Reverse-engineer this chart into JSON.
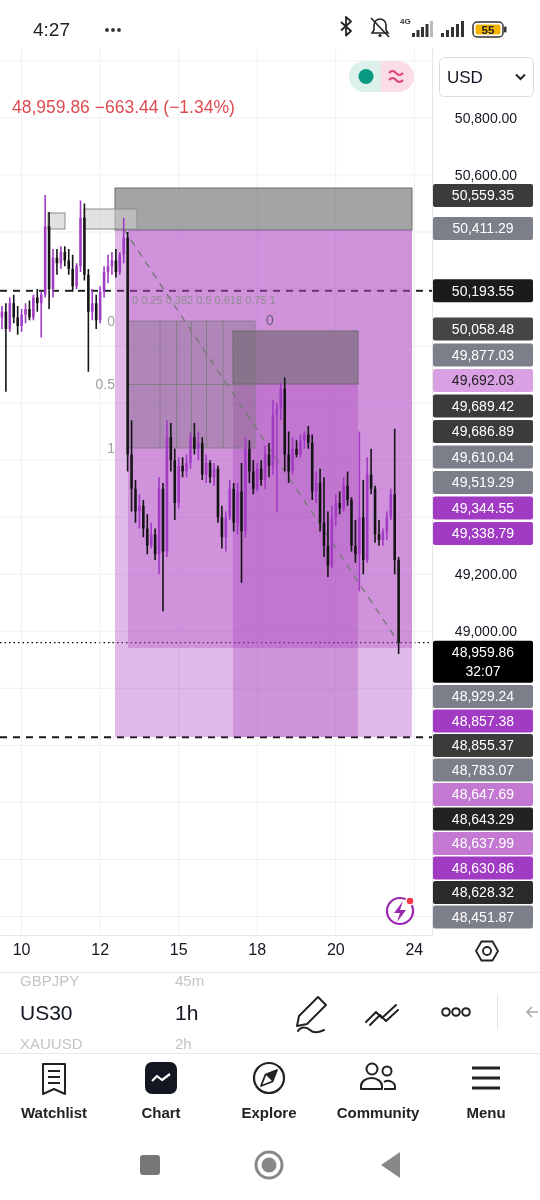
{
  "chart_data": {
    "type": "candlestick",
    "subtitle": "48,959.86 −663.44 (−1.34%)",
    "categories": [
      null,
      null,
      null,
      null,
      null,
      "10",
      null,
      null,
      null,
      null,
      null,
      null,
      null,
      null,
      null,
      null,
      null,
      null,
      null,
      null,
      null,
      null,
      null,
      null,
      null,
      "12",
      null,
      null,
      null,
      null,
      null,
      null,
      null,
      null,
      null,
      null,
      null,
      null,
      null,
      null,
      null,
      null,
      null,
      null,
      null,
      "15",
      null,
      null,
      null,
      null,
      null,
      null,
      null,
      null,
      null,
      null,
      null,
      null,
      null,
      null,
      null,
      null,
      null,
      null,
      null,
      "18",
      null,
      null,
      null,
      null,
      null,
      null,
      null,
      null,
      null,
      null,
      null,
      null,
      null,
      null,
      null,
      null,
      null,
      null,
      null,
      "20",
      null,
      null,
      null,
      null,
      null,
      null,
      null,
      null,
      null,
      null,
      null,
      null,
      null,
      null,
      null,
      null,
      null,
      null,
      null,
      "24",
      null,
      null,
      null,
      null
    ],
    "ohlc": [
      [
        50100,
        50140,
        50060,
        50120
      ],
      [
        50120,
        50150,
        49840,
        50060
      ],
      [
        50060,
        50170,
        50050,
        50150
      ],
      [
        50150,
        50180,
        50080,
        50100
      ],
      [
        50100,
        50140,
        50040,
        50070
      ],
      [
        50070,
        50130,
        50050,
        50110
      ],
      [
        50110,
        50150,
        50080,
        50130
      ],
      [
        50130,
        50160,
        50090,
        50100
      ],
      [
        50100,
        50180,
        50090,
        50170
      ],
      [
        50170,
        50200,
        50120,
        50150
      ],
      [
        50150,
        50190,
        50030,
        50180
      ],
      [
        50180,
        50530,
        50170,
        50420
      ],
      [
        50420,
        50470,
        50130,
        50200
      ],
      [
        50200,
        50340,
        50170,
        50310
      ],
      [
        50310,
        50340,
        50250,
        50290
      ],
      [
        50290,
        50350,
        50270,
        50330
      ],
      [
        50330,
        50350,
        50280,
        50300
      ],
      [
        50300,
        50340,
        50250,
        50270
      ],
      [
        50270,
        50320,
        50190,
        50210
      ],
      [
        50210,
        50290,
        50200,
        50280
      ],
      [
        50280,
        50510,
        50260,
        50450
      ],
      [
        50450,
        50500,
        50230,
        50250
      ],
      [
        50250,
        50270,
        49910,
        50120
      ],
      [
        50120,
        50200,
        50090,
        50150
      ],
      [
        50150,
        50180,
        50060,
        50090
      ],
      [
        50090,
        50210,
        50080,
        50190
      ],
      [
        50190,
        50280,
        50170,
        50260
      ],
      [
        50260,
        50320,
        50220,
        50280
      ],
      [
        50280,
        50330,
        50250,
        50300
      ],
      [
        50300,
        50340,
        50240,
        50260
      ],
      [
        50260,
        50330,
        50250,
        50320
      ],
      [
        50320,
        50450,
        50290,
        50380
      ],
      [
        50380,
        50400,
        49560,
        49620
      ],
      [
        49620,
        49740,
        49420,
        49500
      ],
      [
        49500,
        49530,
        49380,
        49420
      ],
      [
        49420,
        49480,
        49360,
        49440
      ],
      [
        49440,
        49460,
        49330,
        49360
      ],
      [
        49360,
        49410,
        49270,
        49300
      ],
      [
        49300,
        49380,
        49290,
        49340
      ],
      [
        49340,
        49360,
        49250,
        49270
      ],
      [
        49270,
        49540,
        49200,
        49500
      ],
      [
        49500,
        49520,
        49070,
        49280
      ],
      [
        49280,
        49740,
        49260,
        49680
      ],
      [
        49680,
        49730,
        49560,
        49600
      ],
      [
        49600,
        49640,
        49390,
        49450
      ],
      [
        49450,
        49610,
        49430,
        49580
      ],
      [
        49580,
        49610,
        49540,
        49560
      ],
      [
        49560,
        49620,
        49540,
        49590
      ],
      [
        49590,
        49700,
        49570,
        49680
      ],
      [
        49680,
        49730,
        49620,
        49640
      ],
      [
        49640,
        49700,
        49600,
        49660
      ],
      [
        49660,
        49680,
        49530,
        49550
      ],
      [
        49550,
        49620,
        49520,
        49590
      ],
      [
        49590,
        49600,
        49520,
        49540
      ],
      [
        49540,
        49590,
        49510,
        49570
      ],
      [
        49570,
        49580,
        49380,
        49400
      ],
      [
        49400,
        49440,
        49290,
        49330
      ],
      [
        49330,
        49420,
        49280,
        49400
      ],
      [
        49400,
        49530,
        49390,
        49500
      ],
      [
        49500,
        49520,
        49350,
        49380
      ],
      [
        49380,
        49520,
        49340,
        49490
      ],
      [
        49490,
        49590,
        49170,
        49350
      ],
      [
        49350,
        49680,
        49330,
        49640
      ],
      [
        49640,
        49670,
        49520,
        49560
      ],
      [
        49560,
        49600,
        49480,
        49500
      ],
      [
        49500,
        49590,
        49490,
        49570
      ],
      [
        49570,
        49600,
        49510,
        49530
      ],
      [
        49530,
        49650,
        49500,
        49620
      ],
      [
        49620,
        49660,
        49540,
        49580
      ],
      [
        49580,
        49810,
        49550,
        49760
      ],
      [
        49760,
        49800,
        49420,
        49780
      ],
      [
        49780,
        49870,
        49740,
        49850
      ],
      [
        49850,
        49890,
        49560,
        49620
      ],
      [
        49620,
        49700,
        49520,
        49560
      ],
      [
        49560,
        49680,
        49550,
        49640
      ],
      [
        49640,
        49670,
        49610,
        49620
      ],
      [
        49620,
        49690,
        49610,
        49670
      ],
      [
        49670,
        49700,
        49640,
        49690
      ],
      [
        49690,
        49720,
        49640,
        49660
      ],
      [
        49660,
        49690,
        49460,
        49490
      ],
      [
        49490,
        49560,
        49450,
        49520
      ],
      [
        49520,
        49570,
        49350,
        49380
      ],
      [
        49380,
        49540,
        49260,
        49300
      ],
      [
        49300,
        49420,
        49190,
        49230
      ],
      [
        49230,
        49440,
        49220,
        49400
      ],
      [
        49400,
        49480,
        49370,
        49450
      ],
      [
        49450,
        49490,
        49410,
        49430
      ],
      [
        49430,
        49540,
        49420,
        49510
      ],
      [
        49510,
        49560,
        49440,
        49460
      ],
      [
        49460,
        49470,
        49280,
        49300
      ],
      [
        49300,
        49390,
        49240,
        49270
      ],
      [
        49270,
        49700,
        49140,
        49400
      ],
      [
        49400,
        49530,
        49200,
        49250
      ],
      [
        49250,
        49610,
        49240,
        49550
      ],
      [
        49550,
        49640,
        49480,
        49500
      ],
      [
        49500,
        49510,
        49310,
        49340
      ],
      [
        49340,
        49390,
        49300,
        49320
      ],
      [
        49320,
        49360,
        49300,
        49350
      ],
      [
        49350,
        49420,
        49320,
        49400
      ],
      [
        49400,
        49500,
        49390,
        49480
      ],
      [
        49480,
        49710,
        49200,
        49250
      ],
      [
        49250,
        49260,
        48920,
        48959.86
      ],
      null,
      null,
      null,
      null,
      null,
      null,
      null,
      null
    ],
    "series": [
      {
        "type": "line",
        "color": "#7a7a7a",
        "line_style": "dashed",
        "values": [
          null,
          null,
          null,
          null,
          null,
          null,
          null,
          null,
          null,
          null,
          null,
          null,
          null,
          null,
          null,
          null,
          null,
          null,
          null,
          null,
          null,
          null,
          null,
          null,
          null,
          null,
          null,
          null,
          null,
          null,
          null,
          50410,
          null,
          null,
          null,
          null,
          null,
          null,
          null,
          null,
          null,
          null,
          null,
          null,
          null,
          null,
          null,
          null,
          null,
          null,
          null,
          null,
          null,
          null,
          null,
          null,
          null,
          null,
          null,
          null,
          null,
          null,
          null,
          null,
          null,
          null,
          null,
          null,
          null,
          null,
          null,
          null,
          null,
          null,
          null,
          null,
          null,
          null,
          null,
          null,
          null,
          null,
          null,
          null,
          null,
          null,
          null,
          null,
          null,
          null,
          null,
          null,
          null,
          null,
          null,
          null,
          null,
          null,
          null,
          null,
          null,
          48960,
          null,
          null,
          null,
          null,
          null,
          null,
          null,
          null
        ]
      }
    ],
    "ylim": [
      47935,
      51045
    ],
    "yticks": [
      {
        "value": 48000,
        "label": null
      },
      {
        "value": 48200,
        "label": null
      },
      {
        "value": 48400,
        "label": null
      },
      {
        "value": 48600,
        "label": null
      },
      {
        "value": 48800,
        "label": null
      },
      {
        "value": 49000,
        "label": "49,000.00"
      },
      {
        "value": 49200,
        "label": "49,200.00"
      },
      {
        "value": 49400,
        "label": null
      },
      {
        "value": 49600,
        "label": null
      },
      {
        "value": 49800,
        "label": null
      },
      {
        "value": 50000,
        "label": null
      },
      {
        "value": 50200,
        "label": null
      },
      {
        "value": 50400,
        "label": null
      },
      {
        "value": 50600,
        "label": "50,600.00"
      },
      {
        "value": 50800,
        "label": "50,800.00"
      },
      {
        "value": 51000,
        "label": null
      }
    ],
    "grid": true,
    "ref_lines": [
      {
        "axis": "y",
        "value": 50193.55,
        "label": "50,193.55",
        "color": "#1b1b1b",
        "line_style": "dashed"
      },
      {
        "axis": "y",
        "value": 48959.86,
        "label": "48,959.86\n32:07",
        "color": "#000000",
        "line_style": "dotted"
      },
      {
        "axis": "y",
        "value": 48628.32,
        "color": "#1b1b1b",
        "line_style": "dashed"
      }
    ],
    "annotations": [
      "4:27",
      "4G",
      "55",
      "USD",
      "0 0.25 0.382 0.5 0.618 0.75 1",
      "0",
      "0.5",
      "1",
      "0",
      "GBPJPY",
      "45m",
      "US30",
      "1h",
      "XAUUSD",
      "2h",
      "Watchlist",
      "Chart",
      "Explore",
      "Community",
      "Menu",
      "50,559.35",
      "50,411.29",
      "50,058.48",
      "49,877.03",
      "49,692.03",
      "49,689.42",
      "49,686.89",
      "49,610.04",
      "49,519.29",
      "49,344.55",
      "49,338.79",
      "48,929.24",
      "48,857.38",
      "48,855.37",
      "48,783.07",
      "48,647.69",
      "48,643.29",
      "48,637.99",
      "48,630.86",
      "48,628.32",
      "48,451.87"
    ]
  }
}
